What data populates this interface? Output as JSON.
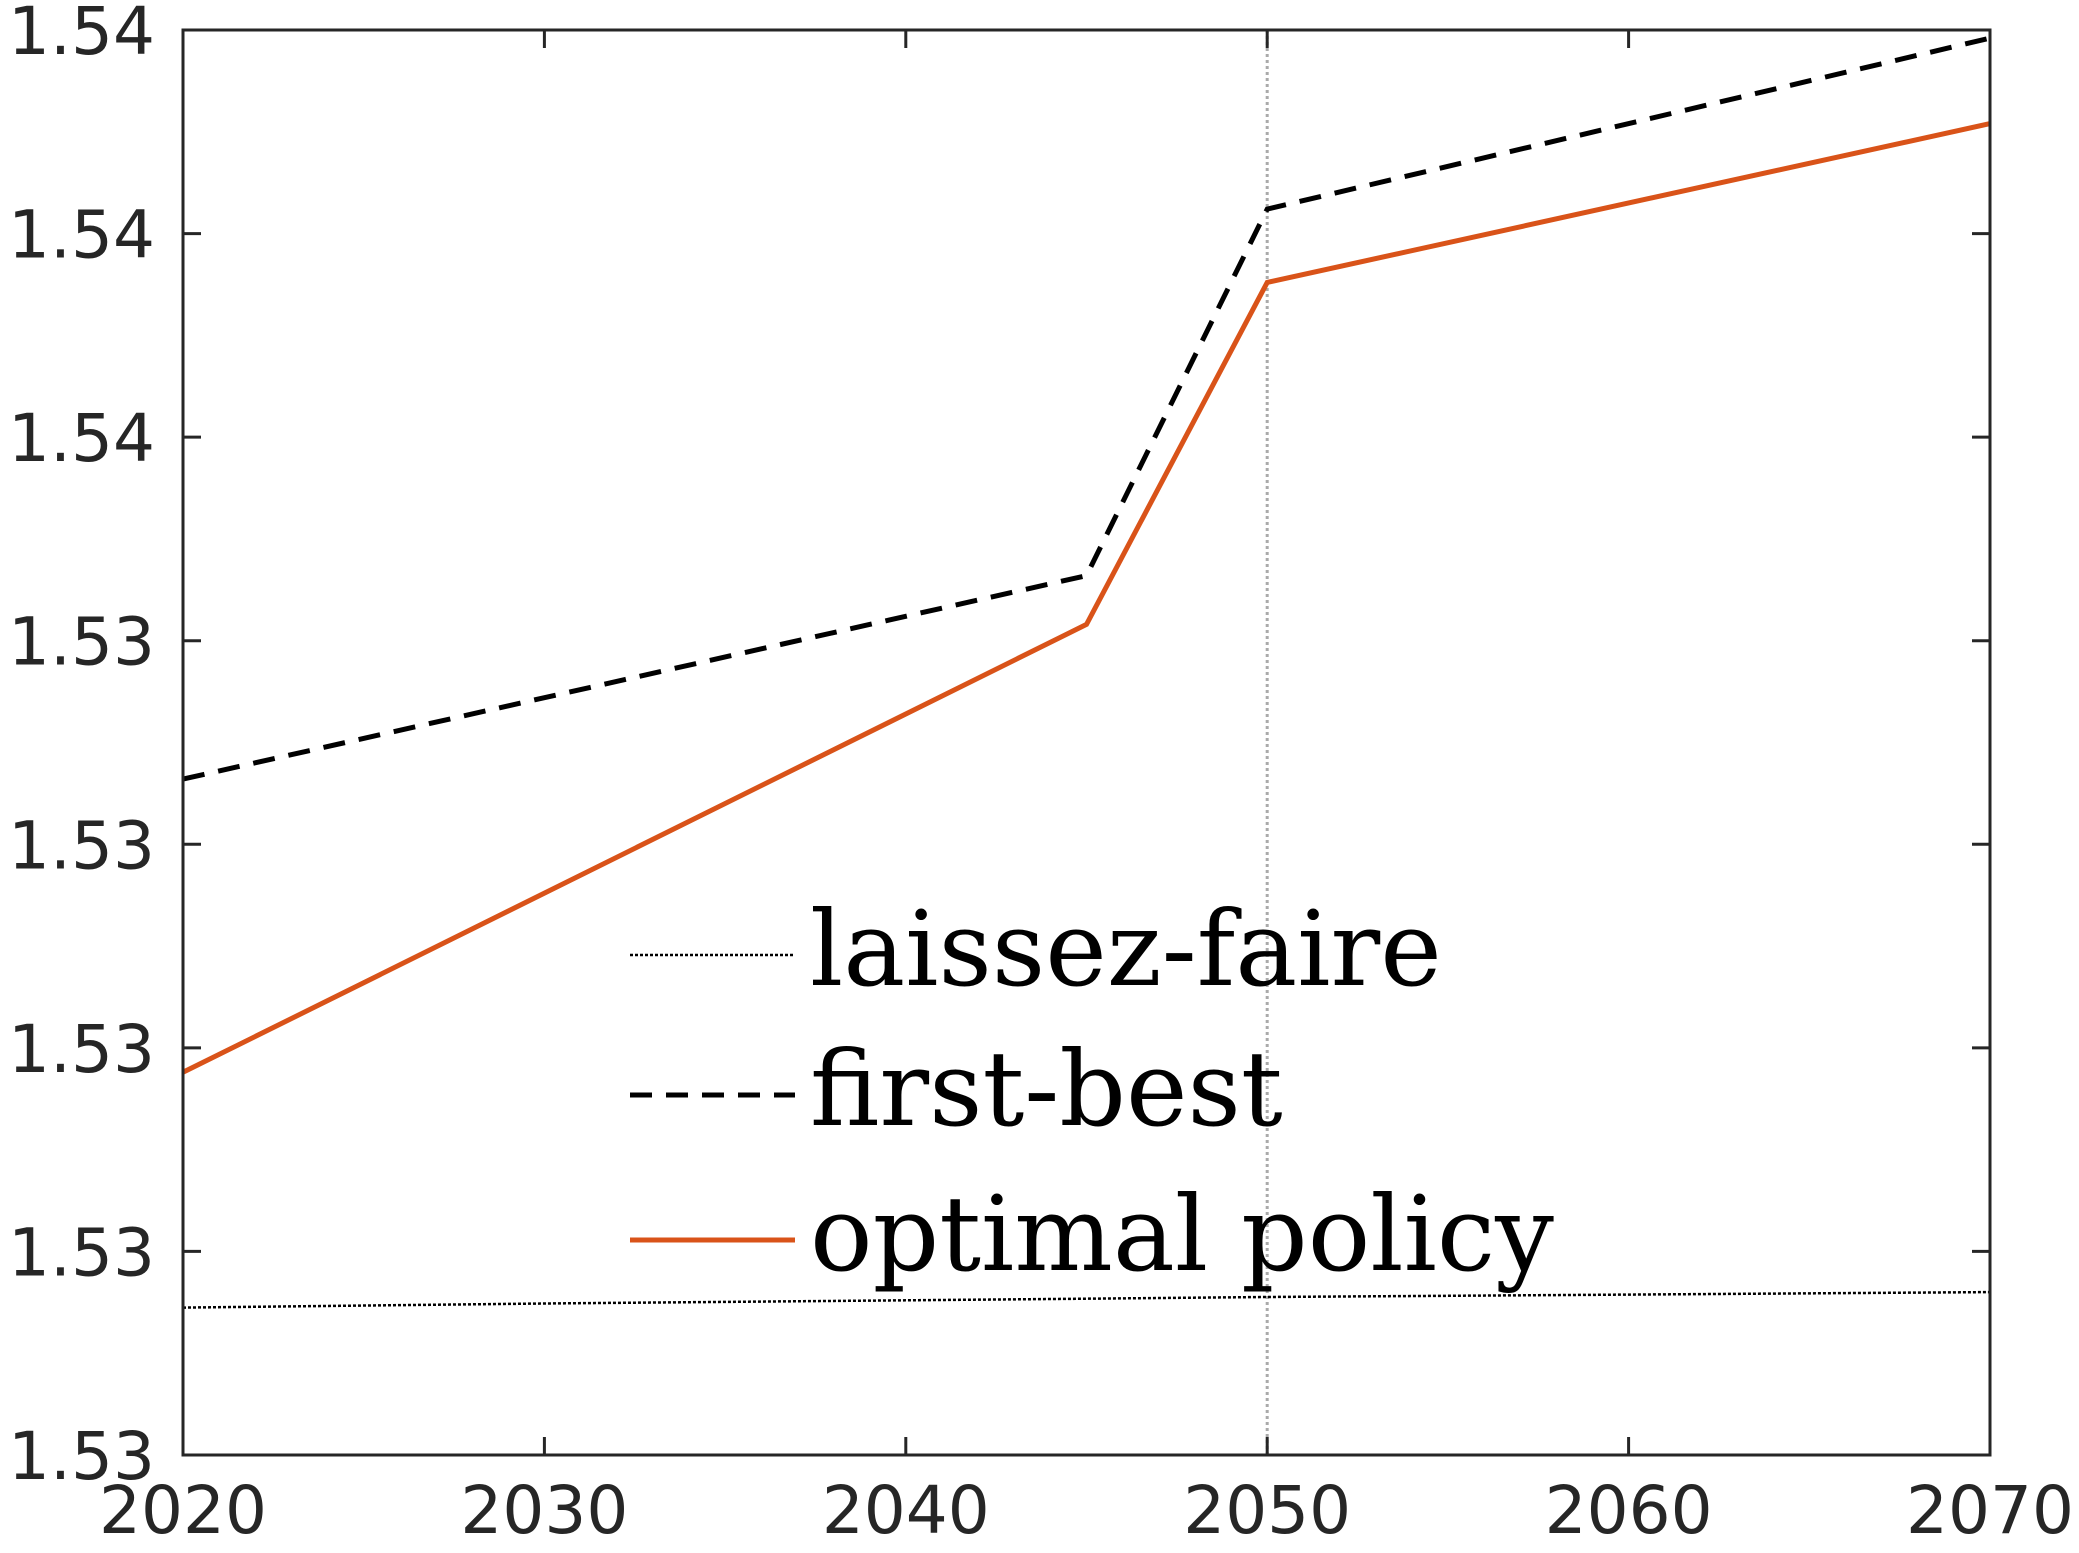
{
  "chart_data": {
    "type": "line",
    "title": "",
    "xlabel": "",
    "ylabel": "",
    "xlim": [
      2020,
      2070
    ],
    "ylim": [
      1.525,
      1.5425
    ],
    "x_ticks": [
      2020,
      2030,
      2040,
      2050,
      2060,
      2070
    ],
    "x_tick_labels": [
      "2020",
      "2030",
      "2040",
      "2050",
      "2060",
      "2070"
    ],
    "y_ticks": [
      1.525,
      1.5275,
      1.53,
      1.5325,
      1.535,
      1.5375,
      1.54,
      1.5425
    ],
    "y_tick_labels": [
      "1.53",
      "1.53",
      "1.53",
      "1.53",
      "1.53",
      "1.54",
      "1.54",
      "1.54"
    ],
    "grid": false,
    "vertical_reference_line": {
      "x": 2050,
      "color": "#aaaaaa",
      "style": "dotted"
    },
    "legend": {
      "placement": "lower-center",
      "entries": [
        "laissez-faire",
        "first-best",
        "optimal policy"
      ]
    },
    "series": [
      {
        "name": "laissez-faire",
        "style": "dotted",
        "color": "#000000",
        "x": [
          2020,
          2030,
          2040,
          2045,
          2050,
          2060,
          2070
        ],
        "y": [
          1.52681,
          1.52686,
          1.5269,
          1.52692,
          1.52694,
          1.52697,
          1.527
        ]
      },
      {
        "name": "first-best",
        "style": "dashed",
        "color": "#000000",
        "x": [
          2020,
          2045,
          2050,
          2070
        ],
        "y": [
          1.5333,
          1.5358,
          1.5403,
          1.5424
        ]
      },
      {
        "name": "optimal policy",
        "style": "solid",
        "color": "#d95319",
        "x": [
          2020,
          2045,
          2050,
          2070
        ],
        "y": [
          1.5297,
          1.5352,
          1.5394,
          1.54135
        ]
      }
    ]
  }
}
